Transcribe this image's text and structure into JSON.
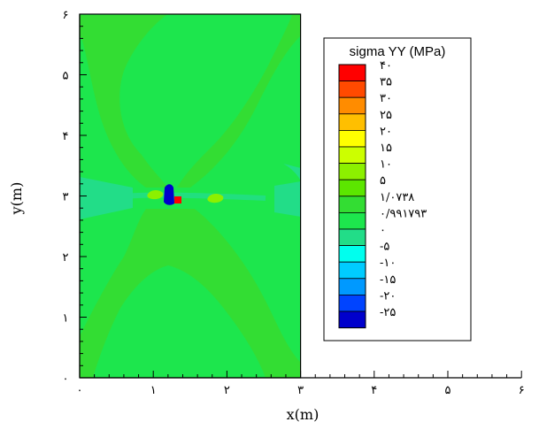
{
  "chart_data": {
    "type": "heatmap",
    "title": "",
    "xlabel": "x(m)",
    "ylabel": "y(m)",
    "xlim": [
      0,
      6
    ],
    "ylim": [
      0,
      6
    ],
    "x_ticks": [
      {
        "value": 0,
        "label": "۰"
      },
      {
        "value": 1,
        "label": "۱"
      },
      {
        "value": 2,
        "label": "۲"
      },
      {
        "value": 3,
        "label": "۳"
      },
      {
        "value": 4,
        "label": "۴"
      },
      {
        "value": 5,
        "label": "۵"
      },
      {
        "value": 6,
        "label": "۶"
      }
    ],
    "y_ticks": [
      {
        "value": 0,
        "label": "۰"
      },
      {
        "value": 1,
        "label": "۱"
      },
      {
        "value": 2,
        "label": "۲"
      },
      {
        "value": 3,
        "label": "۳"
      },
      {
        "value": 4,
        "label": "۴"
      },
      {
        "value": 5,
        "label": "۵"
      },
      {
        "value": 6,
        "label": "۶"
      }
    ],
    "domain_extent": {
      "x": [
        0,
        3
      ],
      "y": [
        0,
        6
      ]
    },
    "field": {
      "background_level": "۰/۹۹۱۷۹۳",
      "regions": [
        {
          "level": "۱/۰۷۳۸",
          "shape": "upper-lobe"
        },
        {
          "level": "۱/۰۷۳۸",
          "shape": "lower-lobe"
        },
        {
          "level": "۰",
          "shape": "side-band"
        },
        {
          "level": "۱۰",
          "shape": "crack-spot"
        },
        {
          "level": "-۲۵",
          "shape": "crack-tip-min"
        },
        {
          "level": "۴۰",
          "shape": "crack-tip-max"
        }
      ]
    },
    "legend": {
      "title": "sigma YY (MPa)",
      "position": "right",
      "levels": [
        {
          "label": "۴۰",
          "color": "#ff0000"
        },
        {
          "label": "۳۵",
          "color": "#ff4a00"
        },
        {
          "label": "۳۰",
          "color": "#ff8c00"
        },
        {
          "label": "۲۵",
          "color": "#ffbf00"
        },
        {
          "label": "۲۰",
          "color": "#ffff00"
        },
        {
          "label": "۱۵",
          "color": "#ccff00"
        },
        {
          "label": "۱۰",
          "color": "#8cf000"
        },
        {
          "label": "۵",
          "color": "#5ce600"
        },
        {
          "label": "۱/۰۷۳۸",
          "color": "#33dd33"
        },
        {
          "label": "۰/۹۹۱۷۹۳",
          "color": "#1de64d"
        },
        {
          "label": "۰",
          "color": "#22dd88"
        },
        {
          "label": "-۵",
          "color": "#00ffee"
        },
        {
          "label": "-۱۰",
          "color": "#00ccff"
        },
        {
          "label": "-۱۵",
          "color": "#0099ff"
        },
        {
          "label": "-۲۰",
          "color": "#0044ff"
        },
        {
          "label": "-۲۵",
          "color": "#0000cc"
        }
      ]
    }
  }
}
